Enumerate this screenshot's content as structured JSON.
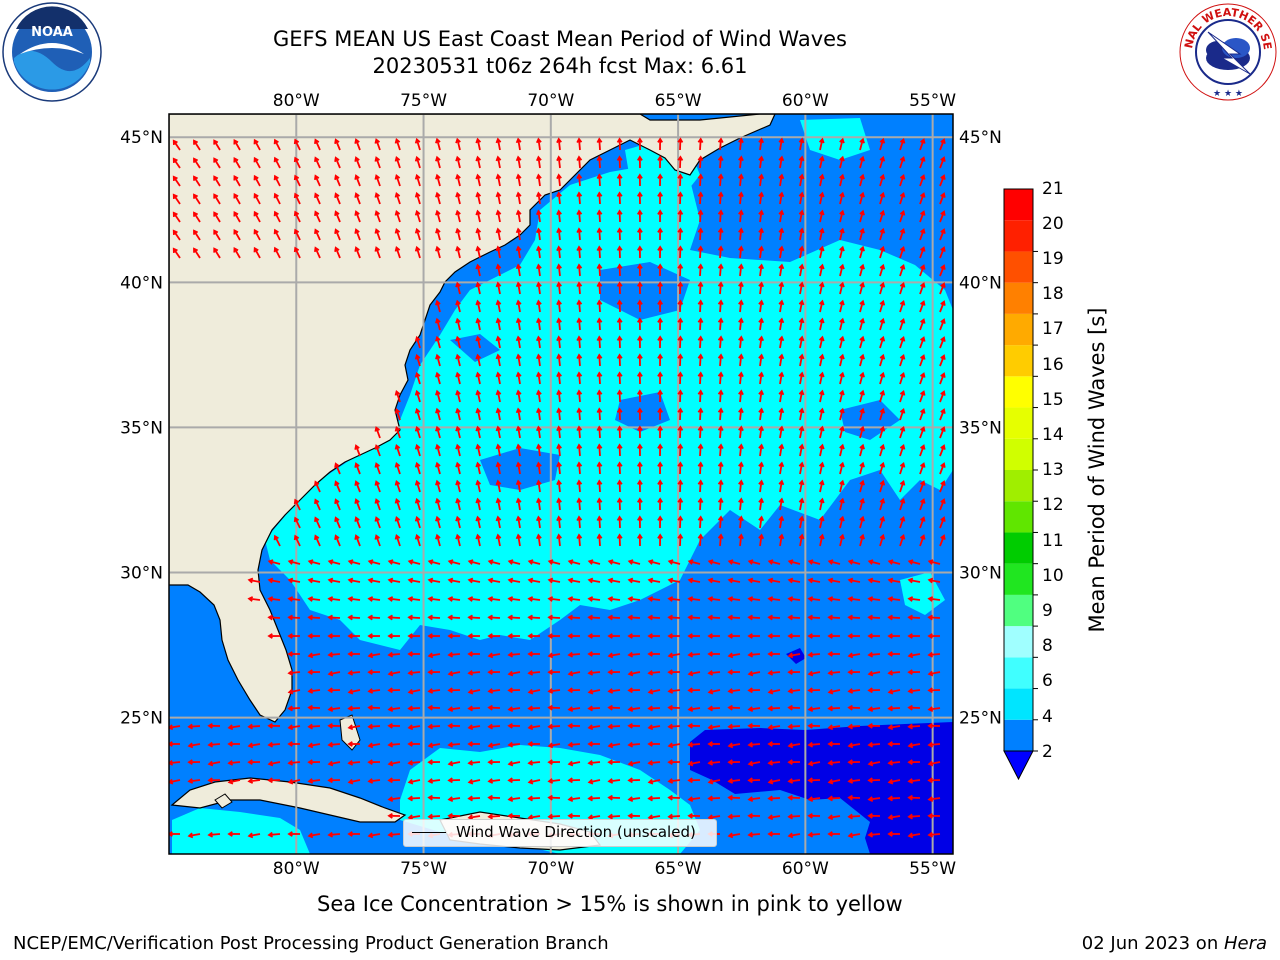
{
  "header": {
    "title": "GEFS MEAN US East Coast Mean Period of Wind Waves",
    "subtitle": "20230531 t06z 264h fcst   Max: 6.61"
  },
  "logos": {
    "left": "NOAA",
    "right_ring_text": "NATIONAL WEATHER SERVICE"
  },
  "map": {
    "lon_labels": [
      "80°W",
      "75°W",
      "70°W",
      "65°W",
      "60°W",
      "55°W"
    ],
    "lat_labels": [
      "45°N",
      "40°N",
      "35°N",
      "30°N",
      "25°N"
    ],
    "lon_values": [
      -80,
      -75,
      -70,
      -65,
      -60,
      -55
    ],
    "lat_values": [
      45,
      40,
      35,
      30,
      25
    ],
    "extent": {
      "lon": [
        -85,
        -54.2
      ],
      "lat": [
        20.3,
        45.8
      ]
    },
    "colors": {
      "land": "#efecdb",
      "ocean_base": "#0080ff",
      "low": "#0000e6",
      "mid": "#00ffff",
      "vector": "#ff0000"
    },
    "legend_label": "Wind Wave Direction (unscaled)"
  },
  "colorbar": {
    "label": "Mean Period of Wind Waves [s]",
    "ticks": [
      "2",
      "4",
      "6",
      "8",
      "9",
      "10",
      "11",
      "12",
      "13",
      "14",
      "15",
      "16",
      "17",
      "18",
      "19",
      "20",
      "21"
    ],
    "colors": [
      "#0080ff",
      "#00e5ff",
      "#40ffff",
      "#a0ffff",
      "#50ff80",
      "#20e620",
      "#00cc00",
      "#60e600",
      "#a0ee00",
      "#d0ff00",
      "#e6ff00",
      "#ffff00",
      "#ffcc00",
      "#ffaa00",
      "#ff8000",
      "#ff5000",
      "#ff2000",
      "#ff0000"
    ],
    "extend_color": "#0000ff"
  },
  "footer": {
    "note": "Sea Ice Concentration > 15% is shown in pink to yellow",
    "credit": "NCEP/EMC/Verification Post Processing Product Generation Branch",
    "date_prefix": "02 Jun 2023 on ",
    "date_host": "Hera"
  }
}
